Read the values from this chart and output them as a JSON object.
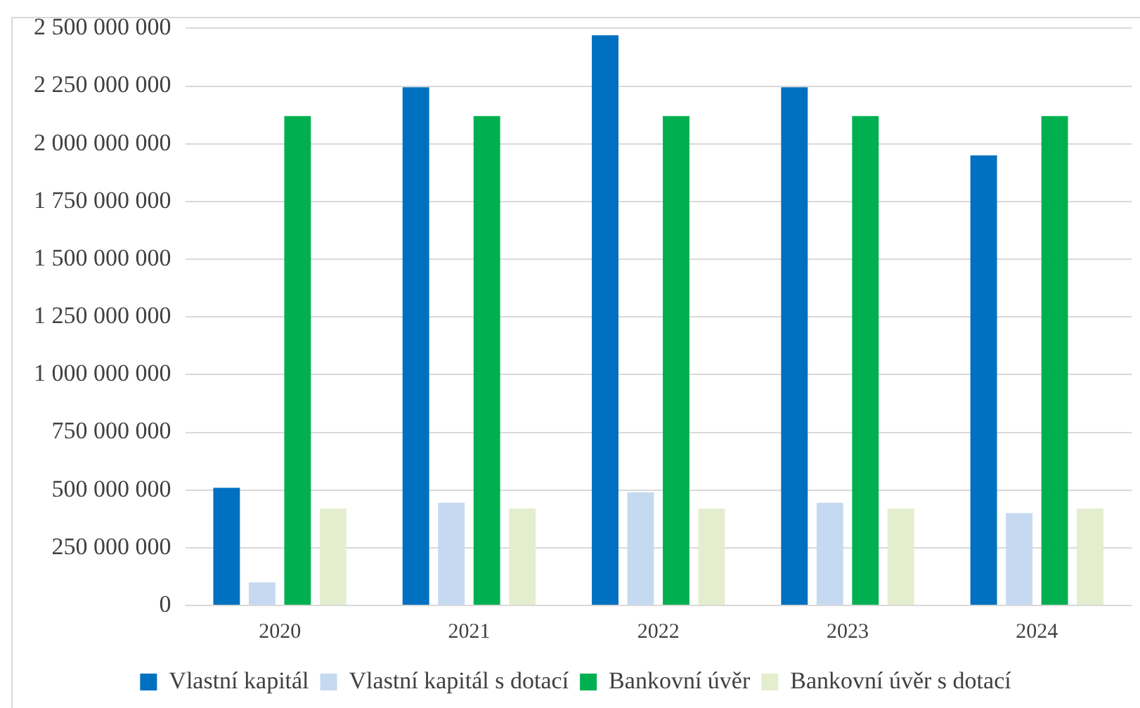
{
  "chart_data": {
    "type": "bar",
    "categories": [
      "2020",
      "2021",
      "2022",
      "2023",
      "2024"
    ],
    "series": [
      {
        "name": "Vlastní kapitál",
        "color": "#0070c0",
        "values": [
          510000000,
          2245000000,
          2470000000,
          2245000000,
          1950000000
        ]
      },
      {
        "name": "Vlastní kapitál s dotací",
        "color": "#c5d9f1",
        "values": [
          100000000,
          445000000,
          490000000,
          445000000,
          400000000
        ]
      },
      {
        "name": "Bankovní úvěr",
        "color": "#00b050",
        "values": [
          2120000000,
          2120000000,
          2120000000,
          2120000000,
          2120000000
        ]
      },
      {
        "name": "Bankovní úvěr s dotací",
        "color": "#e4eecf",
        "values": [
          420000000,
          420000000,
          420000000,
          420000000,
          420000000
        ]
      }
    ],
    "ylim": [
      0,
      2500000000
    ],
    "yticks": [
      {
        "value": 0,
        "label": "0"
      },
      {
        "value": 250000000,
        "label": "250 000 000"
      },
      {
        "value": 500000000,
        "label": "500 000 000"
      },
      {
        "value": 750000000,
        "label": "750 000 000"
      },
      {
        "value": 1000000000,
        "label": "1 000 000 000"
      },
      {
        "value": 1250000000,
        "label": "1 250 000 000"
      },
      {
        "value": 1500000000,
        "label": "1 500 000 000"
      },
      {
        "value": 1750000000,
        "label": "1 750 000 000"
      },
      {
        "value": 2000000000,
        "label": "2 000 000 000"
      },
      {
        "value": 2250000000,
        "label": "2 250 000 000"
      },
      {
        "value": 2500000000,
        "label": "2 500 000 000"
      }
    ],
    "grid": "y",
    "legend": "bottom"
  }
}
